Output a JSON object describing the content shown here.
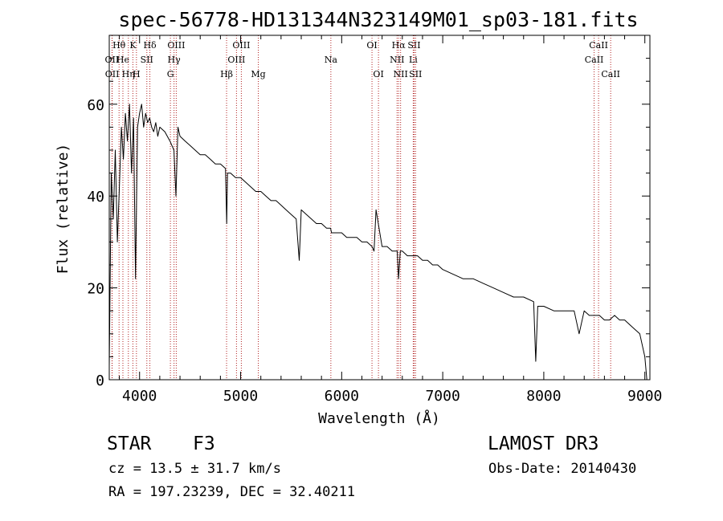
{
  "chart_data": {
    "type": "line",
    "title": "spec-56778-HD131344N323149M01_sp03-181.fits",
    "xlabel": "Wavelength (Å)",
    "ylabel": "Flux (relative)",
    "xlim": [
      3700,
      9050
    ],
    "ylim": [
      0,
      75
    ],
    "xticks": [
      4000,
      5000,
      6000,
      7000,
      8000,
      9000
    ],
    "yticks": [
      0,
      20,
      40,
      60
    ],
    "grid": false,
    "series": [
      {
        "name": "flux",
        "x": [
          3700,
          3720,
          3740,
          3760,
          3780,
          3800,
          3820,
          3840,
          3860,
          3880,
          3900,
          3920,
          3940,
          3960,
          3980,
          4000,
          4020,
          4040,
          4060,
          4080,
          4100,
          4120,
          4140,
          4160,
          4180,
          4200,
          4250,
          4300,
          4340,
          4360,
          4380,
          4400,
          4450,
          4500,
          4550,
          4600,
          4650,
          4700,
          4750,
          4800,
          4850,
          4862,
          4870,
          4900,
          4950,
          5000,
          5050,
          5100,
          5150,
          5200,
          5250,
          5300,
          5350,
          5400,
          5450,
          5500,
          5550,
          5580,
          5600,
          5650,
          5700,
          5750,
          5800,
          5850,
          5890,
          5900,
          5950,
          6000,
          6050,
          6100,
          6150,
          6200,
          6250,
          6300,
          6320,
          6340,
          6400,
          6450,
          6500,
          6550,
          6563,
          6580,
          6600,
          6650,
          6700,
          6750,
          6800,
          6850,
          6900,
          6950,
          7000,
          7100,
          7200,
          7300,
          7400,
          7500,
          7600,
          7700,
          7800,
          7900,
          7920,
          7940,
          8000,
          8100,
          8200,
          8300,
          8350,
          8400,
          8450,
          8500,
          8550,
          8600,
          8650,
          8700,
          8750,
          8800,
          8850,
          8900,
          8950,
          9000,
          9020
        ],
        "values": [
          3,
          45,
          35,
          50,
          30,
          42,
          55,
          48,
          58,
          52,
          60,
          45,
          57,
          22,
          55,
          58,
          60,
          55,
          58,
          56,
          57,
          55,
          54,
          56,
          53,
          55,
          54,
          52,
          50,
          40,
          55,
          53,
          52,
          51,
          50,
          49,
          49,
          48,
          47,
          47,
          46,
          34,
          45,
          45,
          44,
          44,
          43,
          42,
          41,
          41,
          40,
          39,
          39,
          38,
          37,
          36,
          35,
          26,
          37,
          36,
          35,
          34,
          34,
          33,
          33,
          32,
          32,
          32,
          31,
          31,
          31,
          30,
          30,
          29,
          28,
          37,
          29,
          29,
          28,
          28,
          22,
          28,
          28,
          27,
          27,
          27,
          26,
          26,
          25,
          25,
          24,
          23,
          22,
          22,
          21,
          20,
          19,
          18,
          18,
          17,
          4,
          16,
          16,
          15,
          15,
          15,
          10,
          15,
          14,
          14,
          14,
          13,
          13,
          14,
          13,
          13,
          12,
          11,
          10,
          5,
          0
        ]
      }
    ],
    "line_markers": [
      {
        "label": "Hθ",
        "wavelength": 3797,
        "row": 0
      },
      {
        "label": "OII",
        "wavelength": 3727,
        "row": 1
      },
      {
        "label": "OII",
        "wavelength": 3729,
        "row": 2
      },
      {
        "label": "He",
        "wavelength": 3835,
        "row": 1
      },
      {
        "label": "Hη",
        "wavelength": 3889,
        "row": 2
      },
      {
        "label": "K",
        "wavelength": 3934,
        "row": 0
      },
      {
        "label": "H",
        "wavelength": 3969,
        "row": 2
      },
      {
        "label": "SII",
        "wavelength": 4072,
        "row": 1
      },
      {
        "label": "Hδ",
        "wavelength": 4102,
        "row": 0
      },
      {
        "label": "OIII",
        "wavelength": 4363,
        "row": 0
      },
      {
        "label": "Hγ",
        "wavelength": 4341,
        "row": 1
      },
      {
        "label": "G",
        "wavelength": 4305,
        "row": 2
      },
      {
        "label": "Hβ",
        "wavelength": 4861,
        "row": 2
      },
      {
        "label": "OIII",
        "wavelength": 5007,
        "row": 0
      },
      {
        "label": "OIII",
        "wavelength": 4959,
        "row": 1
      },
      {
        "label": "Mg",
        "wavelength": 5175,
        "row": 2
      },
      {
        "label": "Na",
        "wavelength": 5893,
        "row": 1
      },
      {
        "label": "OI",
        "wavelength": 6300,
        "row": 0
      },
      {
        "label": "OI",
        "wavelength": 6364,
        "row": 2
      },
      {
        "label": "Hα",
        "wavelength": 6563,
        "row": 0
      },
      {
        "label": "NII",
        "wavelength": 6548,
        "row": 1
      },
      {
        "label": "NII",
        "wavelength": 6583,
        "row": 2
      },
      {
        "label": "SII",
        "wavelength": 6717,
        "row": 0
      },
      {
        "label": "Li",
        "wavelength": 6708,
        "row": 1
      },
      {
        "label": "SII",
        "wavelength": 6731,
        "row": 2
      },
      {
        "label": "CaII",
        "wavelength": 8542,
        "row": 0
      },
      {
        "label": "CaII",
        "wavelength": 8498,
        "row": 1
      },
      {
        "label": "CaII",
        "wavelength": 8662,
        "row": 2
      }
    ]
  },
  "info": {
    "object_type": "STAR",
    "object_class": "F3",
    "survey": "LAMOST DR3",
    "cz": "cz = 13.5 ± 31.7 km/s",
    "obs_date": "Obs-Date: 20140430",
    "radec": "RA = 197.23239, DEC =  32.40211"
  },
  "colors": {
    "line": "#000000",
    "marker": "#b22222",
    "axis": "#000000"
  }
}
